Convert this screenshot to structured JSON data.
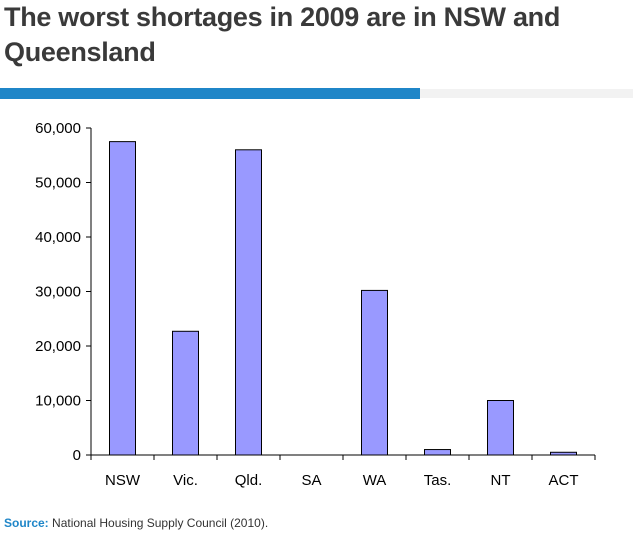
{
  "title": "The worst shortages in 2009 are in NSW and Queensland",
  "colors": {
    "accent": "#1f86c8",
    "bar_fill": "#9999ff",
    "bar_stroke": "#000000",
    "title": "#3a3a3a"
  },
  "chart_data": {
    "type": "bar",
    "title": "",
    "xlabel": "",
    "ylabel": "",
    "categories": [
      "NSW",
      "Vic.",
      "Qld.",
      "SA",
      "WA",
      "Tas.",
      "NT",
      "ACT"
    ],
    "values": [
      57500,
      22700,
      56000,
      0,
      30200,
      1000,
      10000,
      500
    ],
    "ylim": [
      0,
      60000
    ],
    "yticks": [
      0,
      10000,
      20000,
      30000,
      40000,
      50000,
      60000
    ],
    "ytick_labels": [
      "0",
      "10,000",
      "20,000",
      "30,000",
      "40,000",
      "50,000",
      "60,000"
    ],
    "grid": false,
    "legend": "none"
  },
  "source": {
    "label": "Source:",
    "text": "National Housing Supply Council (2010)."
  }
}
